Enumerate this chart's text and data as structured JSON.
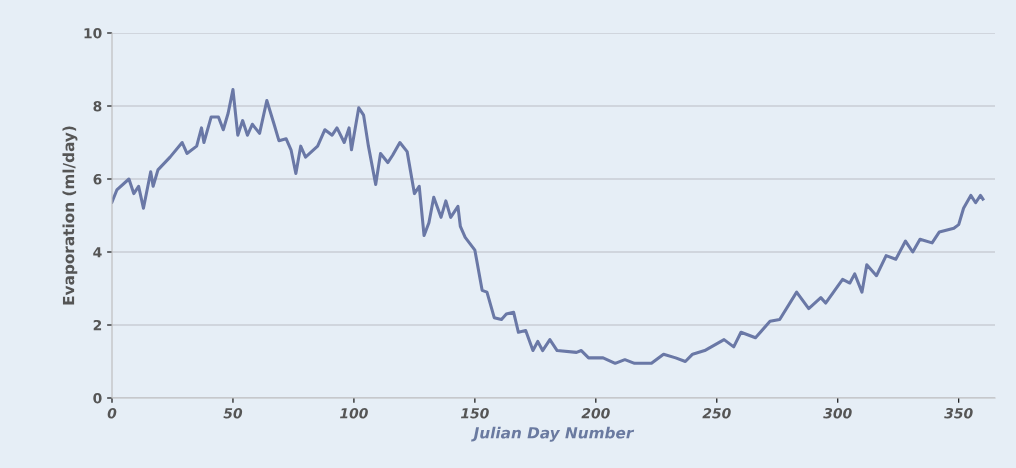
{
  "chart_data": {
    "type": "line",
    "xlabel": "Julian Day Number",
    "ylabel": "Evaporation (ml/day)",
    "xlim": [
      0,
      365
    ],
    "xticks": [
      0,
      50,
      100,
      150,
      200,
      250,
      300,
      350
    ],
    "ylim": [
      0,
      10
    ],
    "yticks": [
      0,
      2,
      4,
      6,
      8,
      10
    ],
    "grid": "y",
    "marker": "none",
    "line_style": "solid",
    "series": [
      {
        "color": "#6a78a6",
        "x": [
          0,
          2,
          7,
          9,
          11,
          13,
          16,
          17,
          19,
          24,
          29,
          31,
          35,
          37,
          38,
          41,
          44,
          46,
          48,
          50,
          52,
          54,
          56,
          58,
          61,
          64,
          67,
          69,
          72,
          74,
          76,
          78,
          80,
          85,
          88,
          91,
          93,
          96,
          98,
          99,
          102,
          104,
          106,
          109,
          111,
          114,
          116,
          119,
          122,
          125,
          127,
          129,
          131,
          133,
          136,
          138,
          140,
          143,
          144,
          146,
          150,
          153,
          155,
          158,
          161,
          163,
          166,
          168,
          171,
          174,
          176,
          178,
          181,
          184,
          192,
          194,
          197,
          203,
          208,
          212,
          216,
          223,
          228,
          233,
          237,
          240,
          245,
          253,
          257,
          260,
          266,
          272,
          276,
          283,
          288,
          293,
          295,
          302,
          305,
          307,
          310,
          312,
          316,
          320,
          324,
          328,
          331,
          334,
          339,
          342,
          348,
          350,
          352,
          355,
          357,
          359,
          360
        ],
        "values": [
          5.37,
          5.7,
          6.0,
          5.6,
          5.8,
          5.2,
          6.2,
          5.8,
          6.25,
          6.6,
          7.0,
          6.7,
          6.9,
          7.4,
          7.0,
          7.7,
          7.7,
          7.35,
          7.8,
          8.45,
          7.2,
          7.6,
          7.2,
          7.5,
          7.25,
          8.15,
          7.5,
          7.05,
          7.1,
          6.8,
          6.15,
          6.9,
          6.6,
          6.9,
          7.35,
          7.2,
          7.4,
          7.0,
          7.4,
          6.8,
          7.95,
          7.75,
          6.9,
          5.85,
          6.7,
          6.45,
          6.65,
          7.0,
          6.75,
          5.6,
          5.8,
          4.45,
          4.8,
          5.5,
          4.95,
          5.4,
          4.95,
          5.25,
          4.7,
          4.4,
          4.05,
          2.95,
          2.9,
          2.2,
          2.15,
          2.3,
          2.35,
          1.8,
          1.85,
          1.3,
          1.55,
          1.3,
          1.6,
          1.3,
          1.25,
          1.3,
          1.1,
          1.1,
          0.95,
          1.05,
          0.95,
          0.95,
          1.2,
          1.1,
          1.0,
          1.2,
          1.3,
          1.6,
          1.4,
          1.8,
          1.65,
          2.1,
          2.15,
          2.9,
          2.45,
          2.75,
          2.6,
          3.25,
          3.15,
          3.4,
          2.9,
          3.65,
          3.35,
          3.9,
          3.8,
          4.3,
          4.0,
          4.35,
          4.25,
          4.55,
          4.65,
          4.75,
          5.2,
          5.55,
          5.35,
          5.55,
          5.45
        ]
      }
    ]
  }
}
